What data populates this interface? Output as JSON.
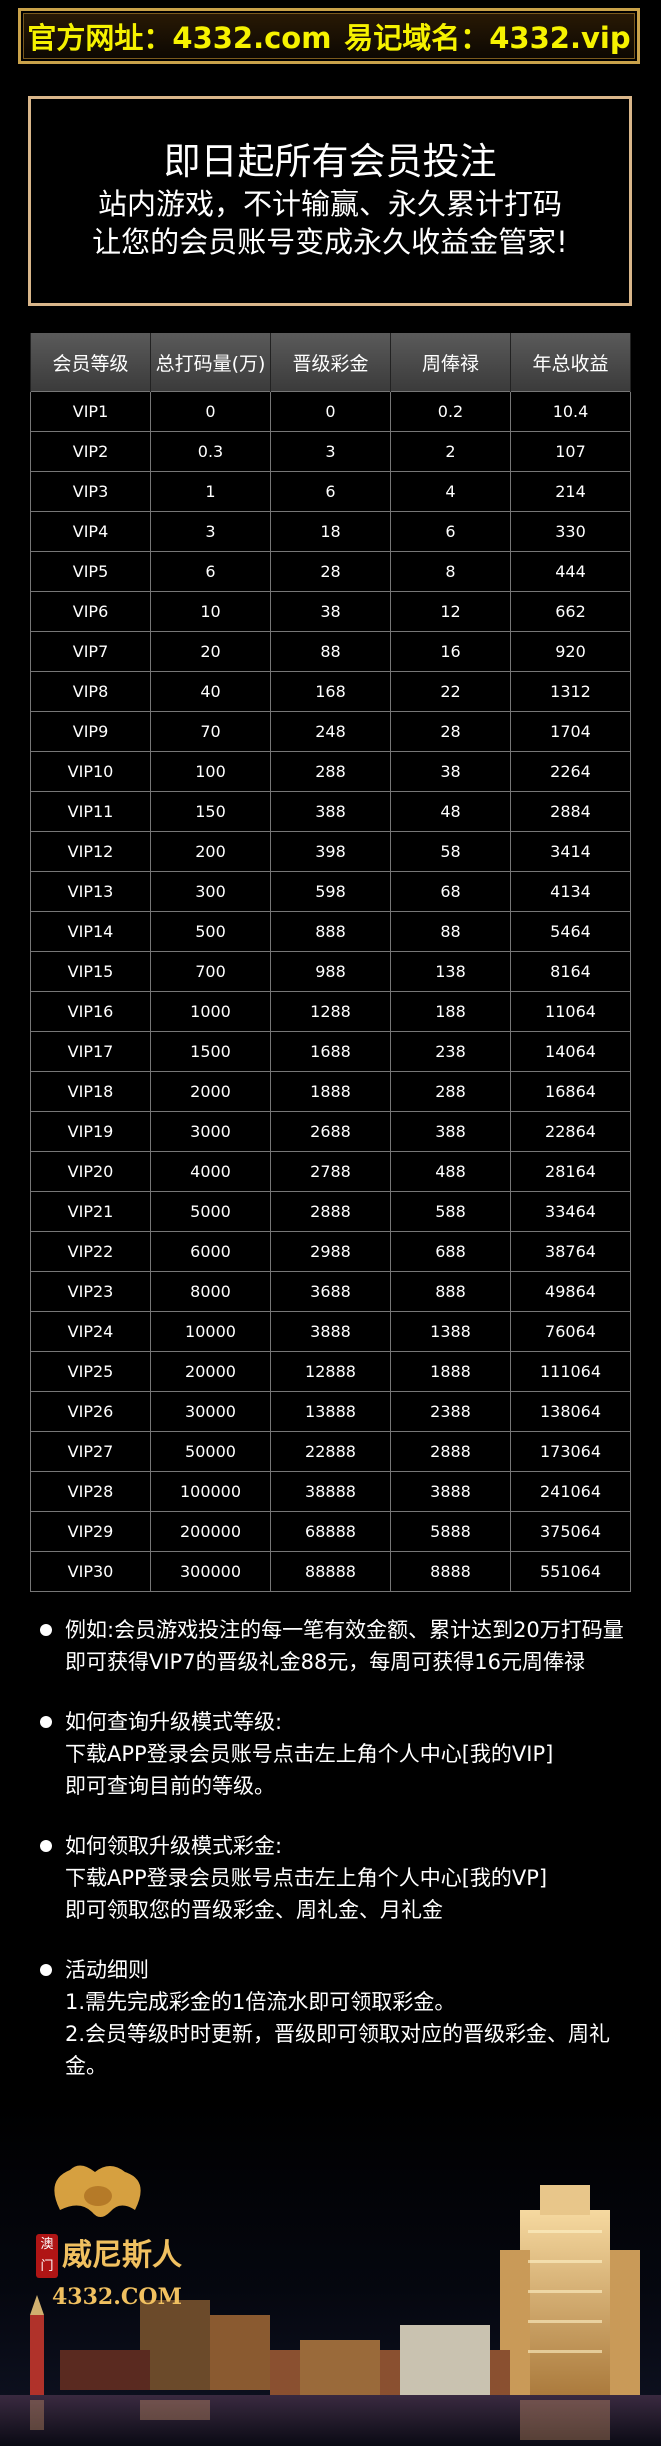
{
  "header": {
    "official_site": "官方网址：4332.com",
    "easy_domain": "易记域名：4332.vip"
  },
  "hero": {
    "line1": "即日起所有会员投注",
    "line2": "站内游戏，不计输赢、永久累计打码",
    "line3": "让您的会员账号变成永久收益金管家!"
  },
  "table": {
    "columns": [
      "会员等级",
      "总打码量(万)",
      "晋级彩金",
      "周俸禄",
      "年总收益"
    ],
    "rows": [
      [
        "VIP1",
        "0",
        "0",
        "0.2",
        "10.4"
      ],
      [
        "VIP2",
        "0.3",
        "3",
        "2",
        "107"
      ],
      [
        "VIP3",
        "1",
        "6",
        "4",
        "214"
      ],
      [
        "VIP4",
        "3",
        "18",
        "6",
        "330"
      ],
      [
        "VIP5",
        "6",
        "28",
        "8",
        "444"
      ],
      [
        "VIP6",
        "10",
        "38",
        "12",
        "662"
      ],
      [
        "VIP7",
        "20",
        "88",
        "16",
        "920"
      ],
      [
        "VIP8",
        "40",
        "168",
        "22",
        "1312"
      ],
      [
        "VIP9",
        "70",
        "248",
        "28",
        "1704"
      ],
      [
        "VIP10",
        "100",
        "288",
        "38",
        "2264"
      ],
      [
        "VIP11",
        "150",
        "388",
        "48",
        "2884"
      ],
      [
        "VIP12",
        "200",
        "398",
        "58",
        "3414"
      ],
      [
        "VIP13",
        "300",
        "598",
        "68",
        "4134"
      ],
      [
        "VIP14",
        "500",
        "888",
        "88",
        "5464"
      ],
      [
        "VIP15",
        "700",
        "988",
        "138",
        "8164"
      ],
      [
        "VIP16",
        "1000",
        "1288",
        "188",
        "11064"
      ],
      [
        "VIP17",
        "1500",
        "1688",
        "238",
        "14064"
      ],
      [
        "VIP18",
        "2000",
        "1888",
        "288",
        "16864"
      ],
      [
        "VIP19",
        "3000",
        "2688",
        "388",
        "22864"
      ],
      [
        "VIP20",
        "4000",
        "2788",
        "488",
        "28164"
      ],
      [
        "VIP21",
        "5000",
        "2888",
        "588",
        "33464"
      ],
      [
        "VIP22",
        "6000",
        "2988",
        "688",
        "38764"
      ],
      [
        "VIP23",
        "8000",
        "3688",
        "888",
        "49864"
      ],
      [
        "VIP24",
        "10000",
        "3888",
        "1388",
        "76064"
      ],
      [
        "VIP25",
        "20000",
        "12888",
        "1888",
        "111064"
      ],
      [
        "VIP26",
        "30000",
        "13888",
        "2388",
        "138064"
      ],
      [
        "VIP27",
        "50000",
        "22888",
        "2888",
        "173064"
      ],
      [
        "VIP28",
        "100000",
        "38888",
        "3888",
        "241064"
      ],
      [
        "VIP29",
        "200000",
        "68888",
        "5888",
        "375064"
      ],
      [
        "VIP30",
        "300000",
        "88888",
        "8888",
        "551064"
      ]
    ]
  },
  "notes": [
    [
      "例如:会员游戏投注的每一笔有效金额、累计达到20万打码量即可获得VIP7的晋级礼金88元，每周可获得16元周俸禄"
    ],
    [
      "如何查询升级模式等级:",
      "下载APP登录会员账号点击左上角个人中心[我的VIP]",
      "即可查询目前的等级。"
    ],
    [
      "如何领取升级模式彩金:",
      "下载APP登录会员账号点击左上角个人中心[我的VP]",
      "即可领取您的晋级彩金、周礼金、月礼金"
    ],
    [
      "活动细则",
      "1.需先完成彩金的1倍流水即可领取彩金。",
      "2.会员等级时时更新，晋级即可领取对应的晋级彩金、周礼金。"
    ]
  ],
  "footer": {
    "logo_side": "澳门",
    "logo_name": "威尼斯人",
    "logo_url": "4332.COM"
  },
  "colors": {
    "header_text": "#f6f200",
    "gold": "#c9a24a",
    "hero_border": "#d9b68a"
  }
}
